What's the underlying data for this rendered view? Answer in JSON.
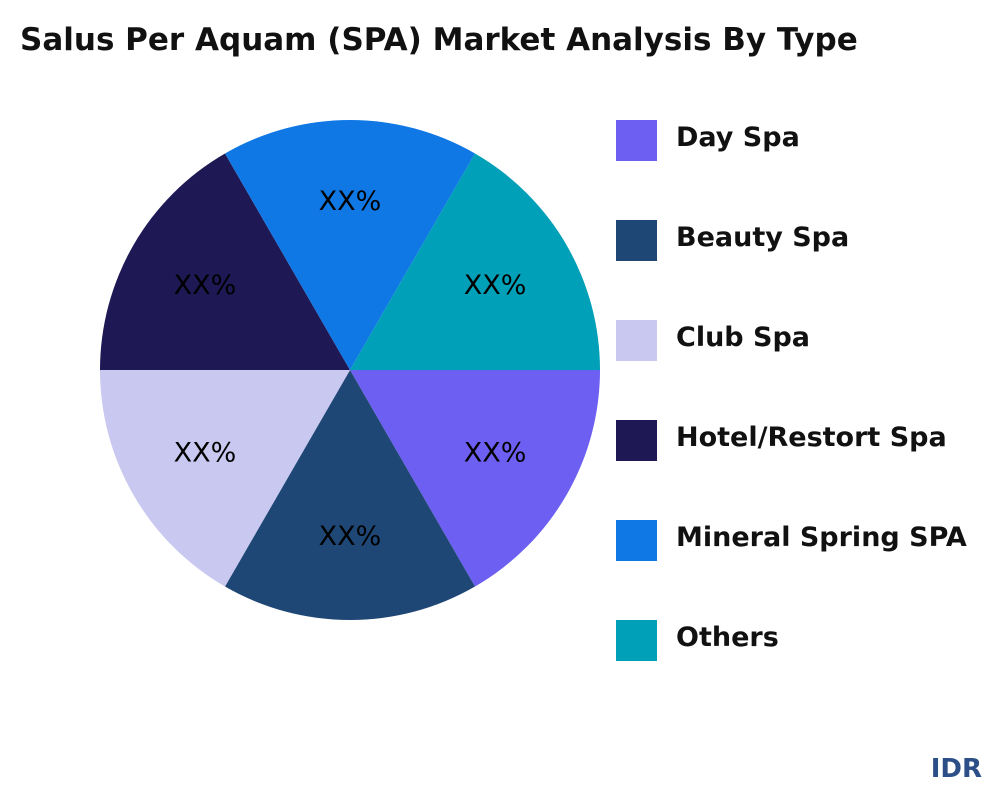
{
  "chart_data": {
    "type": "pie",
    "title": "Salus Per Aquam (SPA) Market Analysis By Type",
    "categories": [
      "Day Spa",
      "Beauty Spa",
      "Club Spa",
      "Hotel/Restort Spa",
      "Mineral Spring SPA",
      "Others"
    ],
    "values": [
      16.67,
      16.67,
      16.67,
      16.67,
      16.67,
      16.67
    ],
    "slice_labels": [
      "XX%",
      "XX%",
      "XX%",
      "XX%",
      "XX%",
      "XX%"
    ],
    "colors": [
      "#6c5ff2",
      "#1f4776",
      "#c8c8f0",
      "#1e1855",
      "#0f78e5",
      "#00a0b8"
    ],
    "legend_position": "right"
  },
  "brand": "IDR"
}
